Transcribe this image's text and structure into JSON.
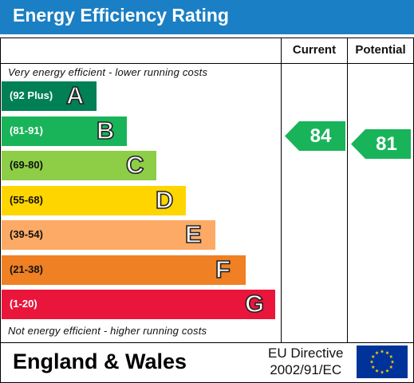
{
  "title": "Energy Efficiency Rating",
  "columns": {
    "current": "Current",
    "potential": "Potential"
  },
  "notes": {
    "top": "Very energy efficient - lower running costs",
    "bottom": "Not energy efficient - higher running costs"
  },
  "footer": {
    "region": "England & Wales",
    "directive_line1": "EU Directive",
    "directive_line2": "2002/91/EC"
  },
  "colors": {
    "header": "#1a7fc4",
    "A": "#008054",
    "B": "#19b459",
    "C": "#8dce46",
    "D": "#ffd500",
    "E": "#fcaa65",
    "F": "#ef8023",
    "G": "#e9153b",
    "flag": "#003399",
    "star": "#ffcc00"
  },
  "icons": {
    "flag": "eu-flag-icon"
  },
  "chart_data": {
    "type": "bar",
    "title": "Energy Efficiency Rating",
    "categories": [
      "A",
      "B",
      "C",
      "D",
      "E",
      "F",
      "G"
    ],
    "ranges": [
      "(92 Plus)",
      "(81-91)",
      "(69-80)",
      "(55-68)",
      "(39-54)",
      "(21-38)",
      "(1-20)"
    ],
    "band_colors": [
      "#008054",
      "#19b459",
      "#8dce46",
      "#ffd500",
      "#fcaa65",
      "#ef8023",
      "#e9153b"
    ],
    "current": {
      "value": 84,
      "band": "B",
      "color": "#19b459"
    },
    "potential": {
      "value": 81,
      "band": "B",
      "color": "#19b459"
    }
  }
}
